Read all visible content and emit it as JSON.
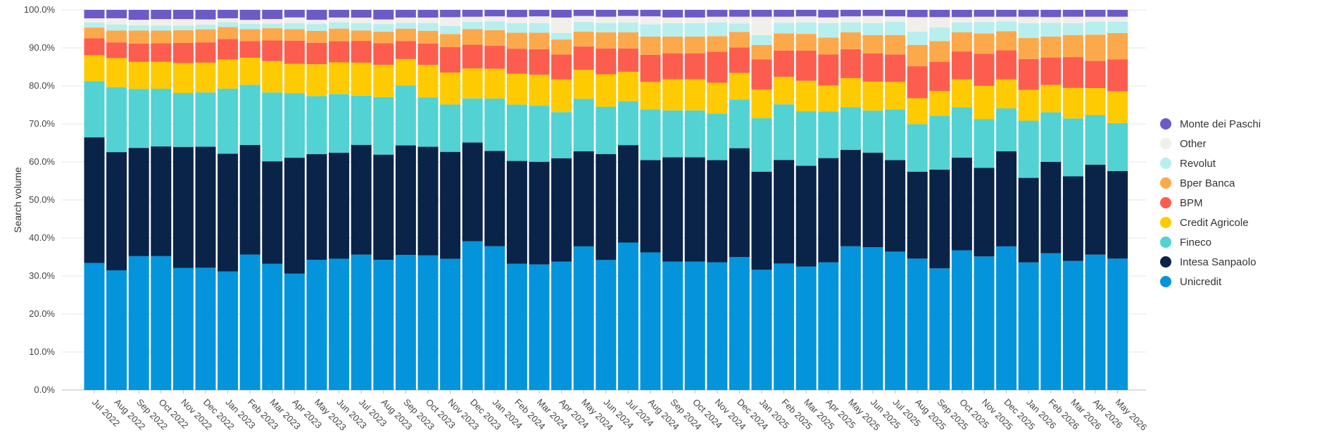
{
  "chart_data": {
    "type": "bar",
    "stacked": true,
    "ylabel": "Search volume",
    "ylim": [
      0,
      100
    ],
    "yticks": [
      "0.0%",
      "10.0%",
      "20.0%",
      "30.0%",
      "40.0%",
      "50.0%",
      "60.0%",
      "70.0%",
      "80.0%",
      "90.0%",
      "100.0%"
    ],
    "grid": true,
    "legend_position": "right",
    "categories": [
      "Jul 2022",
      "Aug 2022",
      "Sep 2022",
      "Oct 2022",
      "Nov 2022",
      "Dec 2022",
      "Jan 2023",
      "Feb 2023",
      "Mar 2023",
      "Apr 2023",
      "May 2023",
      "Jun 2023",
      "Jul 2023",
      "Aug 2023",
      "Sep 2023",
      "Oct 2023",
      "Nov 2023",
      "Dec 2023",
      "Jan 2024",
      "Feb 2024",
      "Mar 2024",
      "Apr 2024",
      "May 2024",
      "Jun 2024",
      "Jul 2024",
      "Aug 2024",
      "Sep 2024",
      "Oct 2024",
      "Nov 2024",
      "Dec 2024",
      "Jan 2025",
      "Feb 2025",
      "Mar 2025",
      "Apr 2025",
      "May 2025",
      "Jun 2025",
      "Jul 2025",
      "Aug 2025",
      "Sep 2025",
      "Oct 2025",
      "Nov 2025",
      "Dec 2025",
      "Jan 2026",
      "Feb 2026",
      "Mar 2026",
      "Apr 2026",
      "May 2026"
    ],
    "series": [
      {
        "name": "Unicredit",
        "color": "#0494db",
        "values": [
          33.0,
          31.3,
          35.0,
          34.8,
          31.9,
          32.0,
          31.0,
          35.1,
          33.0,
          30.6,
          34.0,
          34.3,
          34.9,
          33.9,
          35.2,
          34.7,
          34.1,
          38.8,
          37.6,
          33.2,
          32.9,
          33.4,
          37.6,
          34.1,
          38.6,
          36.1,
          33.7,
          33.7,
          33.5,
          35.0,
          31.5,
          33.2,
          32.4,
          33.6,
          37.7,
          37.4,
          36.3,
          34.5,
          31.9,
          36.6,
          35.0,
          37.6,
          33.5,
          35.9,
          33.9,
          35.5,
          34.5
        ]
      },
      {
        "name": "Intesa Sanpaolo",
        "color": "#0a2348",
        "values": [
          32.6,
          30.9,
          28.3,
          28.5,
          31.6,
          31.7,
          30.8,
          28.4,
          26.8,
          30.5,
          27.6,
          27.7,
          28.3,
          27.4,
          28.5,
          28.0,
          27.8,
          25.8,
          24.9,
          27.0,
          26.9,
          26.9,
          24.9,
          27.8,
          25.5,
          24.2,
          27.4,
          27.4,
          26.8,
          28.6,
          25.7,
          27.2,
          26.4,
          27.4,
          25.3,
          24.8,
          24.0,
          22.8,
          25.9,
          24.3,
          23.2,
          24.9,
          22.2,
          24.0,
          22.2,
          23.6,
          23.0
        ]
      },
      {
        "name": "Fineco",
        "color": "#52d2d2",
        "values": [
          14.6,
          17.0,
          15.4,
          15.0,
          14.1,
          14.2,
          17.0,
          15.6,
          18.0,
          17.0,
          15.2,
          15.3,
          12.7,
          15.0,
          15.6,
          12.7,
          12.3,
          11.5,
          13.7,
          14.8,
          14.7,
          12.0,
          13.7,
          12.4,
          11.5,
          13.3,
          12.3,
          12.3,
          12.2,
          12.8,
          14.0,
          14.6,
          14.3,
          12.3,
          11.2,
          11.0,
          13.3,
          12.5,
          14.1,
          13.2,
          12.8,
          11.2,
          15.0,
          13.0,
          15.2,
          13.0,
          12.6
        ]
      },
      {
        "name": "Credit Agricole",
        "color": "#fecb02",
        "values": [
          6.7,
          7.6,
          7.1,
          7.0,
          7.8,
          7.8,
          7.6,
          7.0,
          8.2,
          7.7,
          8.3,
          8.3,
          8.5,
          8.4,
          6.9,
          8.4,
          8.3,
          7.8,
          7.8,
          8.1,
          8.1,
          8.5,
          7.6,
          8.5,
          7.7,
          7.2,
          8.2,
          8.2,
          8.1,
          7.0,
          7.5,
          7.2,
          8.0,
          6.8,
          7.6,
          7.6,
          7.2,
          6.8,
          6.5,
          7.3,
          8.7,
          7.6,
          8.1,
          7.2,
          8.0,
          7.1,
          8.3
        ]
      },
      {
        "name": "BPM",
        "color": "#fd5d4e",
        "values": [
          4.4,
          4.1,
          4.8,
          4.8,
          5.3,
          5.3,
          5.4,
          4.3,
          5.4,
          6.1,
          5.6,
          5.5,
          5.6,
          5.6,
          4.7,
          5.5,
          6.6,
          6.2,
          6.0,
          6.6,
          6.7,
          6.5,
          6.1,
          6.8,
          6.1,
          7.1,
          6.8,
          6.8,
          8.1,
          6.7,
          7.9,
          6.9,
          7.9,
          8.2,
          7.6,
          7.4,
          7.2,
          8.4,
          7.7,
          7.3,
          8.4,
          7.6,
          8.1,
          7.2,
          8.1,
          7.1,
          8.4
        ]
      },
      {
        "name": "Bper Banca",
        "color": "#fba94a",
        "values": [
          2.8,
          3.1,
          3.4,
          3.3,
          3.3,
          3.4,
          3.1,
          3.1,
          3.2,
          3.0,
          3.1,
          3.3,
          2.7,
          3.0,
          3.2,
          3.3,
          3.4,
          4.1,
          4.1,
          4.2,
          4.3,
          3.9,
          3.9,
          4.2,
          4.2,
          4.8,
          4.4,
          4.4,
          4.1,
          4.1,
          3.8,
          4.5,
          4.4,
          4.4,
          4.4,
          4.8,
          5.1,
          5.6,
          5.4,
          5.0,
          5.3,
          5.0,
          5.5,
          5.5,
          5.8,
          6.9,
          6.9
        ]
      },
      {
        "name": "Revolut",
        "color": "#b7eeee",
        "values": [
          1.3,
          1.6,
          1.4,
          1.3,
          1.2,
          1.2,
          1.3,
          1.4,
          1.2,
          1.6,
          1.8,
          1.7,
          1.9,
          2.0,
          1.5,
          2.0,
          2.1,
          1.9,
          2.3,
          2.5,
          2.5,
          1.7,
          2.5,
          2.5,
          2.6,
          3.2,
          3.5,
          3.5,
          3.6,
          2.2,
          2.6,
          2.8,
          3.0,
          3.8,
          2.6,
          3.1,
          3.5,
          3.5,
          3.6,
          2.6,
          3.0,
          2.6,
          3.9,
          3.6,
          3.1,
          3.4,
          3.0
        ]
      },
      {
        "name": "Other",
        "color": "#f1efea",
        "values": [
          1.1,
          1.6,
          1.4,
          1.7,
          1.7,
          1.4,
          1.0,
          1.0,
          1.2,
          1.5,
          1.1,
          1.2,
          1.4,
          1.2,
          1.4,
          1.4,
          2.3,
          1.3,
          1.3,
          1.6,
          1.8,
          4.0,
          1.6,
          1.6,
          1.7,
          2.1,
          1.5,
          1.5,
          1.5,
          1.8,
          4.8,
          1.6,
          1.6,
          1.5,
          1.6,
          1.9,
          1.4,
          3.8,
          2.7,
          1.4,
          1.4,
          1.2,
          1.7,
          1.5,
          1.7,
          1.3,
          1.3
        ]
      },
      {
        "name": "Monte dei Paschi",
        "color": "#6e5ac6",
        "values": [
          2.2,
          2.2,
          2.6,
          2.4,
          2.4,
          2.5,
          2.2,
          2.6,
          2.4,
          2.0,
          2.6,
          2.0,
          2.0,
          2.5,
          2.0,
          2.0,
          1.9,
          1.8,
          1.7,
          1.9,
          1.7,
          2.0,
          1.6,
          1.8,
          1.6,
          1.7,
          2.0,
          2.0,
          1.8,
          1.8,
          1.8,
          1.8,
          1.7,
          2.0,
          1.7,
          1.6,
          1.7,
          1.9,
          1.9,
          1.9,
          1.8,
          1.8,
          1.8,
          1.9,
          1.8,
          1.8,
          1.8
        ]
      }
    ]
  }
}
